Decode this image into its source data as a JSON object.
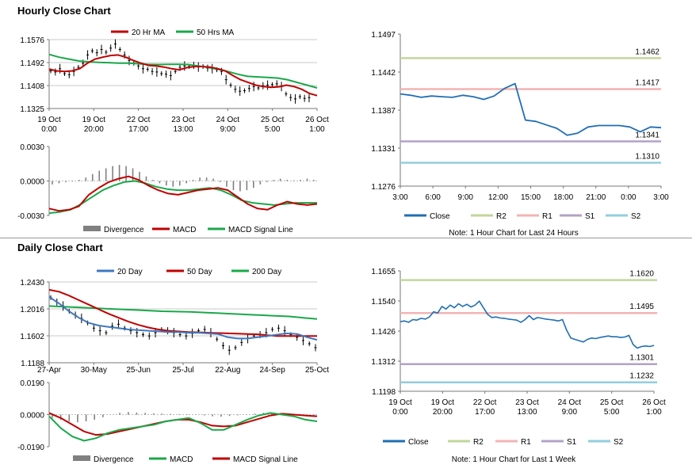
{
  "colors": {
    "red": "#c00000",
    "green": "#1aa84a",
    "blue": "#3f78c0",
    "hblue": "#1f6eb5",
    "r2": "#c3d69b",
    "r1": "#f2b4b4",
    "s1": "#b3a2c7",
    "s2": "#93cddd",
    "gray": "#808080"
  },
  "hourly": {
    "title": "Hourly Close Chart"
  },
  "daily": {
    "title": "Daily Close Chart"
  },
  "chart_data": [
    {
      "id": "hourly_price",
      "type": "line",
      "title": "Hourly Close Chart",
      "legend": [
        "20 Hr MA",
        "50 Hrs MA"
      ],
      "y_ticks": [
        "1.1576",
        "1.1492",
        "1.1408",
        "1.1325"
      ],
      "x_ticks": [
        [
          "19 Oct",
          "0:00"
        ],
        [
          "19 Oct",
          "20:00"
        ],
        [
          "22 Oct",
          "17:00"
        ],
        [
          "23 Oct",
          "13:00"
        ],
        [
          "24 Oct",
          "9:00"
        ],
        [
          "25 Oct",
          "5:00"
        ],
        [
          "26 Oct",
          "1:00"
        ]
      ],
      "ylim": [
        1.1325,
        1.1576
      ],
      "price": [
        1.1462,
        1.1458,
        1.147,
        1.1452,
        1.1448,
        1.146,
        1.1475,
        1.149,
        1.152,
        1.1535,
        1.1528,
        1.154,
        1.153,
        1.1545,
        1.156,
        1.154,
        1.152,
        1.15,
        1.149,
        1.148,
        1.147,
        1.1468,
        1.146,
        1.1458,
        1.1452,
        1.145,
        1.1445,
        1.146,
        1.1475,
        1.148,
        1.1478,
        1.1482,
        1.1476,
        1.1478,
        1.1472,
        1.147,
        1.1466,
        1.146,
        1.143,
        1.141,
        1.1395,
        1.1388,
        1.139,
        1.1398,
        1.1405,
        1.14,
        1.1408,
        1.141,
        1.1412,
        1.1415,
        1.1405,
        1.1378,
        1.1365,
        1.136,
        1.1368,
        1.1362,
        1.1365
      ],
      "series": [
        {
          "name": "20 Hr MA",
          "color": "red",
          "values": [
            1.1468,
            1.1462,
            1.146,
            1.1462,
            1.147,
            1.149,
            1.1505,
            1.1512,
            1.1518,
            1.152,
            1.1512,
            1.15,
            1.149,
            1.1482,
            1.148,
            1.1476,
            1.147,
            1.1466,
            1.1474,
            1.1478,
            1.1478,
            1.1476,
            1.147,
            1.1462,
            1.1445,
            1.143,
            1.142,
            1.141,
            1.1405,
            1.1402,
            1.1404,
            1.141,
            1.1405,
            1.1395,
            1.138,
            1.1372
          ]
        },
        {
          "name": "50 Hrs MA",
          "color": "green",
          "values": [
            1.1522,
            1.1512,
            1.1505,
            1.1498,
            1.1495,
            1.1493,
            1.1492,
            1.149,
            1.149,
            1.1488,
            1.1486,
            1.1485,
            1.1486,
            1.1486,
            1.1485,
            1.148,
            1.1475,
            1.1468,
            1.146,
            1.145,
            1.1442,
            1.144,
            1.1438,
            1.1436,
            1.143,
            1.142,
            1.141,
            1.14
          ]
        }
      ]
    },
    {
      "id": "hourly_macd",
      "type": "line",
      "y_ticks": [
        "0.0030",
        "0.0000",
        "-0.0030"
      ],
      "ylim": [
        -0.003,
        0.003
      ],
      "legend": [
        "Divergence",
        "MACD",
        "MACD Signal Line"
      ],
      "divergence": [
        -0.0003,
        -0.0002,
        -0.0001,
        -5e-05,
        0.0001,
        0.0003,
        0.0006,
        0.0009,
        0.0011,
        0.0013,
        0.0014,
        0.0013,
        0.0011,
        0.0008,
        0.0004,
        0.0001,
        -0.0002,
        -0.0004,
        -0.0005,
        -0.0004,
        -0.0002,
        0.0001,
        0.0003,
        0.0003,
        0.0002,
        -0.0001,
        -0.0005,
        -0.0008,
        -0.0009,
        -0.0008,
        -0.0006,
        -0.0003,
        -0.0001,
        0.0001,
        0.0002,
        0.0001,
        5e-05,
        0.0001,
        0.0002,
        0.0001
      ],
      "series": [
        {
          "name": "MACD",
          "color": "red",
          "values": [
            -0.0024,
            -0.0026,
            -0.0025,
            -0.0022,
            -0.0012,
            -0.0006,
            -0.0001,
            0.0002,
            0.0004,
            0.0001,
            -0.0004,
            -0.0008,
            -0.0011,
            -0.0012,
            -0.001,
            -0.0008,
            -0.0007,
            -0.0006,
            -0.0008,
            -0.0014,
            -0.002,
            -0.0024,
            -0.0025,
            -0.0021,
            -0.0018,
            -0.002,
            -0.0021,
            -0.002
          ]
        },
        {
          "name": "MACD Signal Line",
          "color": "green",
          "values": [
            -0.0028,
            -0.0027,
            -0.0025,
            -0.002,
            -0.0014,
            -0.0008,
            -0.0004,
            -0.0001,
            0.0,
            -0.0002,
            -0.0005,
            -0.0007,
            -0.0008,
            -0.0008,
            -0.0007,
            -0.0006,
            -0.0008,
            -0.0012,
            -0.0017,
            -0.0019,
            -0.002,
            -0.0021,
            -0.002,
            -0.0019,
            -0.0019,
            -0.0019
          ]
        }
      ]
    },
    {
      "id": "hourly_24h",
      "type": "line",
      "note": "Note: 1 Hour Chart for Last 24 Hours",
      "y_ticks": [
        "1.1497",
        "1.1442",
        "1.1387",
        "1.1331",
        "1.1276"
      ],
      "ylim": [
        1.1276,
        1.1497
      ],
      "x_ticks": [
        "3:00",
        "6:00",
        "9:00",
        "12:00",
        "15:00",
        "18:00",
        "21:00",
        "0:00",
        "3:00"
      ],
      "close": [
        1.141,
        1.1408,
        1.1405,
        1.1407,
        1.1406,
        1.1405,
        1.1408,
        1.1406,
        1.1402,
        1.1407,
        1.1418,
        1.1425,
        1.1372,
        1.137,
        1.1365,
        1.136,
        1.135,
        1.1353,
        1.1362,
        1.1364,
        1.1364,
        1.1364,
        1.1362,
        1.1355,
        1.1362,
        1.1361
      ],
      "levels": [
        {
          "name": "R2",
          "value": 1.1462,
          "label": "1.1462",
          "color": "r2"
        },
        {
          "name": "R1",
          "value": 1.1417,
          "label": "1.1417",
          "color": "r1"
        },
        {
          "name": "S1",
          "value": 1.1341,
          "label": "1.1341",
          "color": "s1"
        },
        {
          "name": "S2",
          "value": 1.131,
          "label": "1.1310",
          "color": "s2"
        }
      ],
      "legend": [
        "Close",
        "R2",
        "R1",
        "S1",
        "S2"
      ]
    },
    {
      "id": "daily_price",
      "type": "line",
      "title": "Daily Close Chart",
      "legend": [
        "20 Day",
        "50 Day",
        "200 Day"
      ],
      "y_ticks": [
        "1.2430",
        "1.2016",
        "1.1602",
        "1.1188"
      ],
      "ylim": [
        1.1188,
        1.243
      ],
      "x_ticks": [
        "27-Apr",
        "30-May",
        "25-Jun",
        "25-Jul",
        "22-Aug",
        "24-Sep",
        "25-Oct"
      ],
      "price": [
        1.219,
        1.212,
        1.206,
        1.198,
        1.192,
        1.187,
        1.18,
        1.172,
        1.168,
        1.165,
        1.175,
        1.178,
        1.172,
        1.168,
        1.165,
        1.162,
        1.16,
        1.165,
        1.17,
        1.168,
        1.165,
        1.162,
        1.16,
        1.164,
        1.168,
        1.17,
        1.165,
        1.155,
        1.145,
        1.138,
        1.142,
        1.15,
        1.156,
        1.16,
        1.162,
        1.165,
        1.17,
        1.172,
        1.168,
        1.162,
        1.158,
        1.153,
        1.148,
        1.142
      ],
      "series": [
        {
          "name": "20 Day",
          "color": "blue",
          "values": [
            1.22,
            1.21,
            1.198,
            1.188,
            1.18,
            1.176,
            1.174,
            1.172,
            1.17,
            1.169,
            1.168,
            1.167,
            1.166,
            1.166,
            1.165,
            1.165,
            1.164,
            1.163,
            1.158,
            1.156,
            1.156,
            1.158,
            1.16,
            1.162,
            1.164,
            1.163,
            1.158,
            1.154
          ]
        },
        {
          "name": "50 Day",
          "color": "red",
          "values": [
            1.231,
            1.228,
            1.222,
            1.215,
            1.208,
            1.201,
            1.194,
            1.188,
            1.182,
            1.177,
            1.173,
            1.17,
            1.168,
            1.167,
            1.166,
            1.1655,
            1.165,
            1.1645,
            1.164,
            1.1635,
            1.163,
            1.1625,
            1.161,
            1.16,
            1.1598,
            1.16,
            1.16,
            1.16
          ]
        },
        {
          "name": "200 Day",
          "color": "green",
          "values": [
            1.206,
            1.205,
            1.204,
            1.203,
            1.202,
            1.201,
            1.2,
            1.199,
            1.198,
            1.1975,
            1.197,
            1.196,
            1.195,
            1.194,
            1.193,
            1.192,
            1.191,
            1.19,
            1.188,
            1.186
          ]
        }
      ]
    },
    {
      "id": "daily_macd",
      "type": "line",
      "y_ticks": [
        "0.0190",
        "0.0000",
        "-0.0190"
      ],
      "ylim": [
        -0.019,
        0.019
      ],
      "legend": [
        "Divergence",
        "MACD",
        "MACD Signal Line"
      ],
      "divergence": [
        -0.002,
        -0.003,
        -0.004,
        -0.0045,
        -0.004,
        -0.003,
        -0.0015,
        0.0,
        0.001,
        0.0015,
        0.0012,
        0.001,
        0.0008,
        0.0006,
        0.0004,
        0.0003,
        0.0002,
        0.0001,
        -0.0005,
        -0.001,
        -0.0012,
        -0.0008,
        -0.0004,
        0.0002,
        0.0006,
        0.001,
        0.0012,
        0.001,
        0.0006,
        0.0002,
        -0.0002,
        -0.0004
      ],
      "series": [
        {
          "name": "MACD",
          "color": "green",
          "values": [
            -0.001,
            -0.008,
            -0.013,
            -0.0155,
            -0.014,
            -0.011,
            -0.009,
            -0.008,
            -0.007,
            -0.006,
            -0.004,
            -0.003,
            -0.002,
            -0.005,
            -0.009,
            -0.009,
            -0.006,
            -0.003,
            -0.0005,
            0.001,
            0.0,
            -0.001,
            -0.003,
            -0.004
          ]
        },
        {
          "name": "MACD Signal Line",
          "color": "red",
          "values": [
            0.001,
            -0.002,
            -0.006,
            -0.01,
            -0.012,
            -0.0115,
            -0.01,
            -0.0085,
            -0.007,
            -0.0055,
            -0.004,
            -0.003,
            -0.003,
            -0.0045,
            -0.0065,
            -0.007,
            -0.0065,
            -0.0045,
            -0.0025,
            -0.0005,
            0.0005,
            0.0,
            -0.0005,
            -0.001
          ]
        }
      ]
    },
    {
      "id": "daily_week",
      "type": "line",
      "note": "Note: 1 Hour Chart for Last 1 Week",
      "y_ticks": [
        "1.1655",
        "1.1540",
        "1.1426",
        "1.1312",
        "1.1198"
      ],
      "ylim": [
        1.1198,
        1.1655
      ],
      "x_ticks": [
        [
          "19 Oct",
          "0:00"
        ],
        [
          "19 Oct",
          "20:00"
        ],
        [
          "22 Oct",
          "17:00"
        ],
        [
          "23 Oct",
          "13:00"
        ],
        [
          "24 Oct",
          "9:00"
        ],
        [
          "25 Oct",
          "5:00"
        ],
        [
          "26 Oct",
          "1:00"
        ]
      ],
      "close": [
        1.1462,
        1.1465,
        1.146,
        1.147,
        1.1468,
        1.1475,
        1.1472,
        1.148,
        1.15,
        1.1495,
        1.152,
        1.151,
        1.1525,
        1.1515,
        1.153,
        1.152,
        1.1528,
        1.1518,
        1.1525,
        1.154,
        1.1515,
        1.149,
        1.1478,
        1.148,
        1.1476,
        1.1475,
        1.1472,
        1.147,
        1.1468,
        1.146,
        1.147,
        1.1485,
        1.147,
        1.1478,
        1.1475,
        1.1472,
        1.147,
        1.1468,
        1.1465,
        1.147,
        1.143,
        1.14,
        1.1395,
        1.139,
        1.1385,
        1.1395,
        1.14,
        1.1398,
        1.1402,
        1.1405,
        1.1408,
        1.1405,
        1.1405,
        1.1402,
        1.1404,
        1.141,
        1.1375,
        1.1362,
        1.1368,
        1.137,
        1.1368,
        1.1372
      ],
      "levels": [
        {
          "name": "R2",
          "value": 1.162,
          "label": "1.1620",
          "color": "r2"
        },
        {
          "name": "R1",
          "value": 1.1495,
          "label": "1.1495",
          "color": "r1"
        },
        {
          "name": "S1",
          "value": 1.1301,
          "label": "1.1301",
          "color": "s1"
        },
        {
          "name": "S2",
          "value": 1.1232,
          "label": "1.1232",
          "color": "s2"
        }
      ],
      "legend": [
        "Close",
        "R2",
        "R1",
        "S1",
        "S2"
      ]
    }
  ]
}
